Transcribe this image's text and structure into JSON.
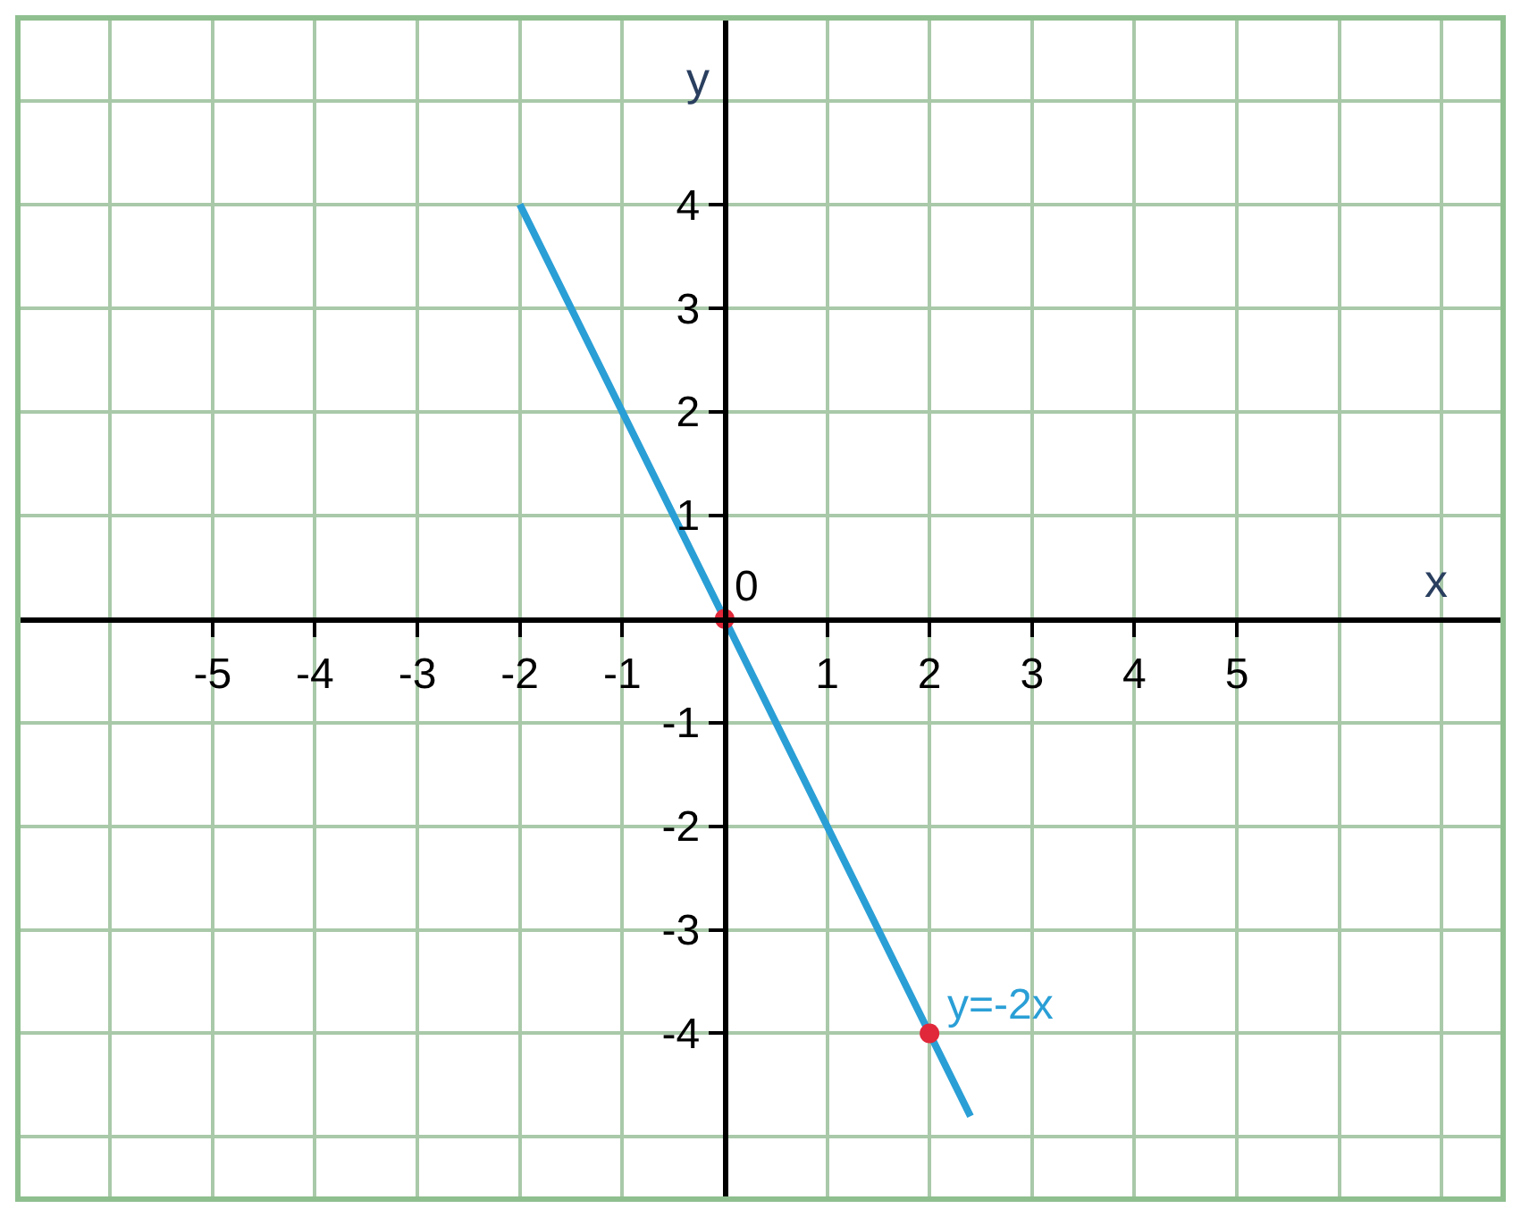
{
  "chart_data": {
    "type": "line",
    "xlabel": "x",
    "ylabel": "y",
    "xlim": [
      -6.9,
      7.6
    ],
    "ylim": [
      -5.6,
      5.8
    ],
    "xticks": [
      -5,
      -4,
      -3,
      -2,
      -1,
      1,
      2,
      3,
      4,
      5
    ],
    "yticks": [
      -4,
      -3,
      -2,
      -1,
      1,
      2,
      3,
      4
    ],
    "grid": true,
    "annotations": [
      {
        "text": "0",
        "x": 0,
        "y": 0
      }
    ],
    "series": [
      {
        "name": "y=-2x",
        "color": "#2a9fd6",
        "x": [
          -2,
          0,
          2,
          2.4
        ],
        "values": [
          4,
          0,
          -4,
          -4.8
        ]
      },
      {
        "color": "#e0283a",
        "type": "scatter",
        "marker": "circle",
        "x": [
          0,
          2
        ],
        "values": [
          0,
          -4
        ]
      }
    ]
  }
}
